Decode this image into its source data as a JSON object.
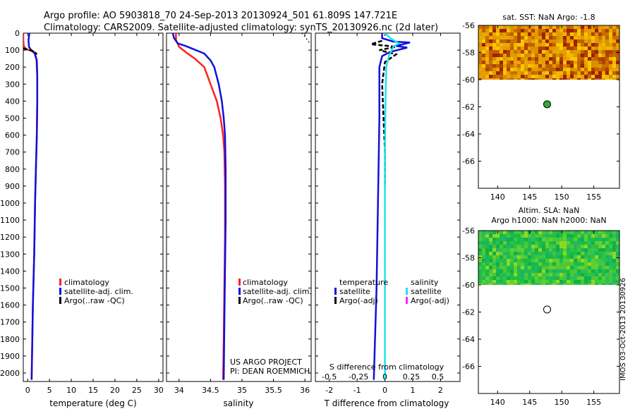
{
  "header": {
    "line1": "Argo profile: AO 5903818_70 24-Sep-2013 20130924_501 61.809S 147.721E",
    "line2": "Climatology: CARS2009. Satellite-adjusted climatology: synTS_20130926.nc (2d later)"
  },
  "side_stamp": "IMOS 03-Oct-2013 20130926",
  "colors": {
    "climatology": "#ff2020",
    "satellite": "#1010dd",
    "argo": "#000000",
    "satellite_salinity": "#20e0f0",
    "argo_salinity_adj": "#ff20ff"
  },
  "chart_data": [
    {
      "type": "line",
      "panel": "temperature",
      "xlabel": "temperature (deg C)",
      "xlim": [
        -1,
        31
      ],
      "xticks": [
        0,
        5,
        10,
        15,
        20,
        25,
        30
      ],
      "ylim": [
        2050,
        0
      ],
      "yticks": [
        0,
        100,
        200,
        300,
        400,
        500,
        600,
        700,
        800,
        900,
        1000,
        1100,
        1200,
        1300,
        1400,
        1500,
        1600,
        1700,
        1800,
        1900,
        2000
      ],
      "legend": [
        "climatology",
        "satellite-adj. clim.",
        "Argo(..raw -QC)"
      ],
      "series": [
        {
          "name": "climatology",
          "points": [
            [
              -1.0,
              0
            ],
            [
              -1.0,
              40
            ],
            [
              -0.9,
              75
            ],
            [
              -0.3,
              95
            ],
            [
              1.5,
              110
            ],
            [
              2.0,
              150
            ],
            [
              2.2,
              250
            ],
            [
              2.2,
              400
            ],
            [
              2.1,
              600
            ],
            [
              1.9,
              800
            ],
            [
              1.7,
              1000
            ],
            [
              1.5,
              1300
            ],
            [
              1.2,
              1600
            ],
            [
              1.0,
              1900
            ],
            [
              0.9,
              2040
            ]
          ]
        },
        {
          "name": "satellite-adj. clim.",
          "points": [
            [
              0.4,
              0
            ],
            [
              0.2,
              40
            ],
            [
              0.3,
              80
            ],
            [
              0.8,
              100
            ],
            [
              1.6,
              120
            ],
            [
              2.1,
              160
            ],
            [
              2.2,
              250
            ],
            [
              2.2,
              400
            ],
            [
              2.1,
              600
            ],
            [
              1.9,
              800
            ],
            [
              1.7,
              1000
            ],
            [
              1.5,
              1300
            ],
            [
              1.2,
              1600
            ],
            [
              1.0,
              1900
            ],
            [
              0.9,
              2040
            ]
          ]
        },
        {
          "name": "Argo(..raw -QC)",
          "points": [
            [
              -1.0,
              90
            ],
            [
              -0.2,
              95
            ],
            [
              0.8,
              100
            ],
            [
              1.8,
              115
            ],
            [
              2.1,
              125
            ]
          ]
        }
      ]
    },
    {
      "type": "line",
      "panel": "salinity",
      "xlabel": "salinity",
      "xlim": [
        33.8,
        36.1
      ],
      "xticks": [
        34,
        34.5,
        35,
        35.5,
        36
      ],
      "ylim": [
        2050,
        0
      ],
      "legend": [
        "climatology",
        "satellite-adj. clim.",
        "Argo(..raw -QC)"
      ],
      "annotations": [
        "US ARGO PROJECT",
        "PI: DEAN ROEMMICH"
      ],
      "series": [
        {
          "name": "climatology",
          "points": [
            [
              33.95,
              0
            ],
            [
              33.95,
              40
            ],
            [
              34.0,
              80
            ],
            [
              34.1,
              110
            ],
            [
              34.25,
              150
            ],
            [
              34.4,
              200
            ],
            [
              34.5,
              300
            ],
            [
              34.6,
              400
            ],
            [
              34.66,
              500
            ],
            [
              34.7,
              600
            ],
            [
              34.72,
              700
            ],
            [
              34.73,
              900
            ],
            [
              34.73,
              1200
            ],
            [
              34.72,
              1500
            ],
            [
              34.71,
              1800
            ],
            [
              34.7,
              2040
            ]
          ]
        },
        {
          "name": "satellite-adj. clim.",
          "points": [
            [
              33.9,
              0
            ],
            [
              33.92,
              30
            ],
            [
              33.98,
              60
            ],
            [
              34.1,
              75
            ],
            [
              34.2,
              90
            ],
            [
              34.4,
              120
            ],
            [
              34.5,
              160
            ],
            [
              34.56,
              200
            ],
            [
              34.63,
              300
            ],
            [
              34.68,
              400
            ],
            [
              34.71,
              500
            ],
            [
              34.73,
              600
            ],
            [
              34.74,
              800
            ],
            [
              34.74,
              1100
            ],
            [
              34.73,
              1400
            ],
            [
              34.72,
              1700
            ],
            [
              34.71,
              2040
            ]
          ]
        },
        {
          "name": "Argo(..raw -QC)",
          "points": [
            [
              35.95,
              0
            ],
            [
              36.0,
              20
            ],
            [
              36.05,
              45
            ],
            [
              36.08,
              60
            ]
          ]
        }
      ]
    },
    {
      "type": "line",
      "panel": "difference",
      "xlabel": "T difference from climatology",
      "top_axis_label": "S difference from climatology",
      "xlim": [
        -2.5,
        2.7
      ],
      "xticks": [
        -2,
        -1,
        0,
        1,
        2
      ],
      "top_xticks": [
        "-0.5",
        "-0.25",
        "0",
        "0.25",
        "0.5"
      ],
      "ylim": [
        2050,
        0
      ],
      "legend_headers": [
        "temperature",
        "salinity"
      ],
      "legend": [
        "satellite",
        "Argo(-adj)",
        "satellite",
        "Argo(-adj)"
      ],
      "series": [
        {
          "name": "satellite",
          "group": "temperature",
          "points": [
            [
              -0.1,
              0
            ],
            [
              -0.1,
              30
            ],
            [
              0.3,
              50
            ],
            [
              0.9,
              55
            ],
            [
              0.4,
              75
            ],
            [
              0.8,
              85
            ],
            [
              0.2,
              110
            ],
            [
              -0.1,
              135
            ],
            [
              -0.2,
              200
            ],
            [
              -0.2,
              500
            ],
            [
              -0.25,
              1000
            ],
            [
              -0.3,
              1500
            ],
            [
              -0.4,
              2040
            ]
          ]
        },
        {
          "name": "Argo(-adj)",
          "group": "temperature",
          "points": [
            [
              -0.1,
              45
            ],
            [
              -0.5,
              65
            ],
            [
              0.4,
              80
            ],
            [
              -0.2,
              100
            ],
            [
              0.4,
              125
            ],
            [
              0.0,
              170
            ],
            [
              -0.1,
              300
            ],
            [
              -0.05,
              500
            ],
            [
              0.0,
              700
            ],
            [
              0.0,
              900
            ]
          ]
        },
        {
          "name": "satellite",
          "group": "salinity",
          "points": [
            [
              0.0,
              0
            ],
            [
              0.2,
              30
            ],
            [
              0.5,
              60
            ],
            [
              0.3,
              80
            ],
            [
              0.25,
              100
            ],
            [
              0.15,
              130
            ],
            [
              0.05,
              200
            ],
            [
              0.02,
              400
            ],
            [
              0.0,
              700
            ],
            [
              0.0,
              2040
            ]
          ]
        }
      ]
    },
    {
      "type": "heatmap",
      "panel": "sst-map",
      "title": "sat. SST: NaN Argo: -1.8",
      "xlim": [
        137,
        159
      ],
      "ylim": [
        -68,
        -56
      ],
      "xticks": [
        140,
        145,
        150,
        155
      ],
      "yticks": [
        -56,
        -58,
        -60,
        -62,
        -64,
        -66
      ],
      "data_extent_y": [
        -56,
        -60
      ],
      "argo_position": [
        147.721,
        -61.809
      ],
      "marker_color": "#33aa33"
    },
    {
      "type": "heatmap",
      "panel": "sla-map",
      "title_line1": "Altim. SLA: NaN",
      "title_line2": "Argo h1000: NaN h2000: NaN",
      "xlim": [
        137,
        159
      ],
      "ylim": [
        -68,
        -56
      ],
      "xticks": [
        140,
        145,
        150,
        155
      ],
      "yticks": [
        -56,
        -58,
        -60,
        -62,
        -64,
        -66
      ],
      "data_extent_y": [
        -56,
        -60
      ],
      "argo_position": [
        147.721,
        -61.809
      ],
      "marker_color": "#ffffff"
    }
  ]
}
